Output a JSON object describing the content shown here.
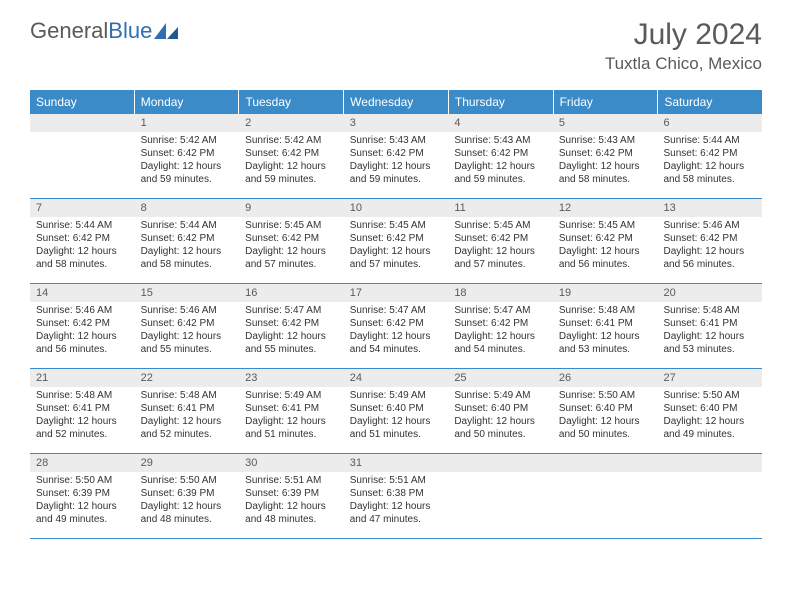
{
  "logo": {
    "word1": "General",
    "word2": "Blue"
  },
  "title": "July 2024",
  "location": "Tuxtla Chico, Mexico",
  "colors": {
    "header_bg": "#3b8bc9",
    "header_text": "#ffffff",
    "daynum_bg": "#ececec",
    "text": "#333333",
    "title_text": "#5a5a5a",
    "logo_gray": "#5a5a5a",
    "logo_blue": "#2e6fb0",
    "row_border": "#3b8bc9"
  },
  "typography": {
    "title_fontsize": 30,
    "location_fontsize": 17,
    "dow_fontsize": 12,
    "daynum_fontsize": 11,
    "body_fontsize": 10
  },
  "dow": [
    "Sunday",
    "Monday",
    "Tuesday",
    "Wednesday",
    "Thursday",
    "Friday",
    "Saturday"
  ],
  "labels": {
    "sunrise": "Sunrise:",
    "sunset": "Sunset:",
    "daylight": "Daylight:"
  },
  "weeks": [
    [
      {
        "n": "",
        "sr": "",
        "ss": "",
        "dl": ""
      },
      {
        "n": "1",
        "sr": "5:42 AM",
        "ss": "6:42 PM",
        "dl": "12 hours and 59 minutes."
      },
      {
        "n": "2",
        "sr": "5:42 AM",
        "ss": "6:42 PM",
        "dl": "12 hours and 59 minutes."
      },
      {
        "n": "3",
        "sr": "5:43 AM",
        "ss": "6:42 PM",
        "dl": "12 hours and 59 minutes."
      },
      {
        "n": "4",
        "sr": "5:43 AM",
        "ss": "6:42 PM",
        "dl": "12 hours and 59 minutes."
      },
      {
        "n": "5",
        "sr": "5:43 AM",
        "ss": "6:42 PM",
        "dl": "12 hours and 58 minutes."
      },
      {
        "n": "6",
        "sr": "5:44 AM",
        "ss": "6:42 PM",
        "dl": "12 hours and 58 minutes."
      }
    ],
    [
      {
        "n": "7",
        "sr": "5:44 AM",
        "ss": "6:42 PM",
        "dl": "12 hours and 58 minutes."
      },
      {
        "n": "8",
        "sr": "5:44 AM",
        "ss": "6:42 PM",
        "dl": "12 hours and 58 minutes."
      },
      {
        "n": "9",
        "sr": "5:45 AM",
        "ss": "6:42 PM",
        "dl": "12 hours and 57 minutes."
      },
      {
        "n": "10",
        "sr": "5:45 AM",
        "ss": "6:42 PM",
        "dl": "12 hours and 57 minutes."
      },
      {
        "n": "11",
        "sr": "5:45 AM",
        "ss": "6:42 PM",
        "dl": "12 hours and 57 minutes."
      },
      {
        "n": "12",
        "sr": "5:45 AM",
        "ss": "6:42 PM",
        "dl": "12 hours and 56 minutes."
      },
      {
        "n": "13",
        "sr": "5:46 AM",
        "ss": "6:42 PM",
        "dl": "12 hours and 56 minutes."
      }
    ],
    [
      {
        "n": "14",
        "sr": "5:46 AM",
        "ss": "6:42 PM",
        "dl": "12 hours and 56 minutes."
      },
      {
        "n": "15",
        "sr": "5:46 AM",
        "ss": "6:42 PM",
        "dl": "12 hours and 55 minutes."
      },
      {
        "n": "16",
        "sr": "5:47 AM",
        "ss": "6:42 PM",
        "dl": "12 hours and 55 minutes."
      },
      {
        "n": "17",
        "sr": "5:47 AM",
        "ss": "6:42 PM",
        "dl": "12 hours and 54 minutes."
      },
      {
        "n": "18",
        "sr": "5:47 AM",
        "ss": "6:42 PM",
        "dl": "12 hours and 54 minutes."
      },
      {
        "n": "19",
        "sr": "5:48 AM",
        "ss": "6:41 PM",
        "dl": "12 hours and 53 minutes."
      },
      {
        "n": "20",
        "sr": "5:48 AM",
        "ss": "6:41 PM",
        "dl": "12 hours and 53 minutes."
      }
    ],
    [
      {
        "n": "21",
        "sr": "5:48 AM",
        "ss": "6:41 PM",
        "dl": "12 hours and 52 minutes."
      },
      {
        "n": "22",
        "sr": "5:48 AM",
        "ss": "6:41 PM",
        "dl": "12 hours and 52 minutes."
      },
      {
        "n": "23",
        "sr": "5:49 AM",
        "ss": "6:41 PM",
        "dl": "12 hours and 51 minutes."
      },
      {
        "n": "24",
        "sr": "5:49 AM",
        "ss": "6:40 PM",
        "dl": "12 hours and 51 minutes."
      },
      {
        "n": "25",
        "sr": "5:49 AM",
        "ss": "6:40 PM",
        "dl": "12 hours and 50 minutes."
      },
      {
        "n": "26",
        "sr": "5:50 AM",
        "ss": "6:40 PM",
        "dl": "12 hours and 50 minutes."
      },
      {
        "n": "27",
        "sr": "5:50 AM",
        "ss": "6:40 PM",
        "dl": "12 hours and 49 minutes."
      }
    ],
    [
      {
        "n": "28",
        "sr": "5:50 AM",
        "ss": "6:39 PM",
        "dl": "12 hours and 49 minutes."
      },
      {
        "n": "29",
        "sr": "5:50 AM",
        "ss": "6:39 PM",
        "dl": "12 hours and 48 minutes."
      },
      {
        "n": "30",
        "sr": "5:51 AM",
        "ss": "6:39 PM",
        "dl": "12 hours and 48 minutes."
      },
      {
        "n": "31",
        "sr": "5:51 AM",
        "ss": "6:38 PM",
        "dl": "12 hours and 47 minutes."
      },
      {
        "n": "",
        "sr": "",
        "ss": "",
        "dl": ""
      },
      {
        "n": "",
        "sr": "",
        "ss": "",
        "dl": ""
      },
      {
        "n": "",
        "sr": "",
        "ss": "",
        "dl": ""
      }
    ]
  ]
}
